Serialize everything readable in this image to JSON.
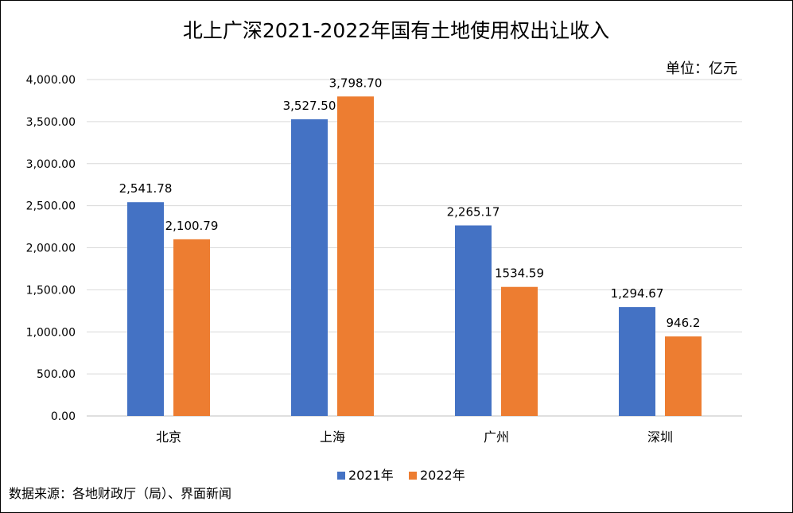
{
  "chart_data": {
    "type": "bar",
    "title": "北上广深2021-2022年国有土地使用权出让收入",
    "unit_label": "单位：亿元",
    "categories": [
      "北京",
      "上海",
      "广州",
      "深圳"
    ],
    "series": [
      {
        "name": "2021年",
        "color": "#4472C4",
        "values": [
          2541.78,
          3527.5,
          2265.17,
          1294.67
        ],
        "labels": [
          "2,541.78",
          "3,527.50",
          "2,265.17",
          "1,294.67"
        ]
      },
      {
        "name": "2022年",
        "color": "#ED7D31",
        "values": [
          2100.79,
          3798.7,
          1534.59,
          946.2
        ],
        "labels": [
          "2,100.79",
          "3,798.70",
          "1534.59",
          "946.2"
        ]
      }
    ],
    "ylim": [
      0,
      4000
    ],
    "yticks": [
      0,
      500,
      1000,
      1500,
      2000,
      2500,
      3000,
      3500,
      4000
    ],
    "ytick_labels": [
      "0.00",
      "500.00",
      "1,000.00",
      "1,500.00",
      "2,000.00",
      "2,500.00",
      "3,000.00",
      "3,500.00",
      "4,000.00"
    ],
    "grid": true,
    "legend_position": "bottom-center",
    "source_note": "数据来源：各地财政厅（局）、界面新闻"
  }
}
